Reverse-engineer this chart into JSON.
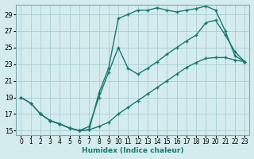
{
  "xlabel": "Humidex (Indice chaleur)",
  "bg_color": "#d4ecee",
  "grid_color": "#aacdd2",
  "line_color": "#1a7a6e",
  "xlim": [
    -0.5,
    23.5
  ],
  "ylim": [
    14.5,
    30.2
  ],
  "xticks": [
    0,
    1,
    2,
    3,
    4,
    5,
    6,
    7,
    8,
    9,
    10,
    11,
    12,
    13,
    14,
    15,
    16,
    17,
    18,
    19,
    20,
    21,
    22,
    23
  ],
  "yticks": [
    15,
    17,
    19,
    21,
    23,
    25,
    27,
    29
  ],
  "line1_x": [
    0,
    1,
    2,
    3,
    4,
    5,
    6,
    7,
    8,
    9,
    10,
    11,
    12,
    13,
    14,
    15,
    16,
    17,
    18,
    19,
    20,
    21,
    22,
    23
  ],
  "line1_y": [
    19,
    18.3,
    17,
    16.2,
    15.8,
    15.3,
    15.0,
    15.1,
    19.5,
    22.5,
    28.5,
    29.0,
    29.5,
    29.5,
    29.8,
    29.5,
    29.3,
    29.5,
    29.7,
    30.0,
    29.5,
    27.0,
    24.0,
    23.3
  ],
  "line2_x": [
    0,
    1,
    2,
    3,
    4,
    5,
    6,
    7,
    8,
    9,
    10,
    11,
    12,
    13,
    14,
    15,
    16,
    17,
    18,
    19,
    20,
    21,
    22,
    23
  ],
  "line2_y": [
    19,
    18.3,
    17,
    16.2,
    15.8,
    15.3,
    15.0,
    15.1,
    15.5,
    16.0,
    17.0,
    17.8,
    18.6,
    19.4,
    20.2,
    21.0,
    21.8,
    22.6,
    23.2,
    23.7,
    23.8,
    23.8,
    23.5,
    23.3
  ],
  "line3_x": [
    2,
    3,
    4,
    5,
    6,
    7,
    8,
    9,
    10,
    11,
    12,
    13,
    14,
    15,
    16,
    17,
    18,
    19,
    20,
    21,
    22,
    23
  ],
  "line3_y": [
    17,
    16.2,
    15.8,
    15.3,
    15.0,
    15.5,
    19.0,
    22.0,
    25.0,
    22.5,
    21.8,
    22.5,
    23.3,
    24.2,
    25.0,
    25.8,
    26.5,
    28.0,
    28.3,
    26.5,
    24.5,
    23.3
  ]
}
